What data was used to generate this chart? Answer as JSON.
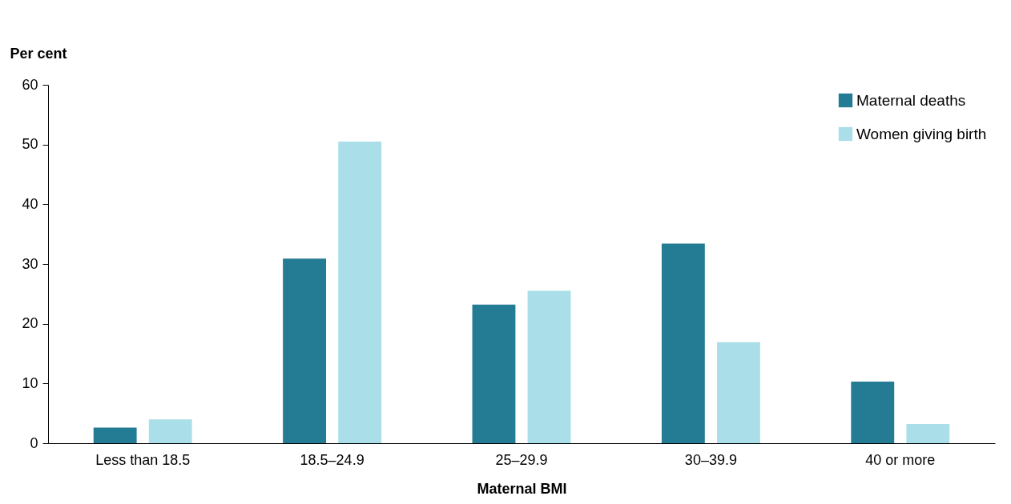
{
  "chart_data": {
    "type": "bar",
    "xlabel": "Maternal BMI",
    "ylabel": "Per cent",
    "categories": [
      "Less than 18.5",
      "18.5–24.9",
      "25–29.9",
      "30–39.9",
      "40 or more"
    ],
    "series": [
      {
        "name": "Maternal deaths",
        "color": "#237c93",
        "values": [
          2.6,
          30.9,
          23.2,
          33.4,
          10.3
        ]
      },
      {
        "name": "Women giving birth",
        "color": "#aadfe9",
        "values": [
          4.0,
          50.5,
          25.5,
          16.9,
          3.2
        ]
      }
    ],
    "ylim": [
      0,
      60
    ],
    "yticks": [
      0,
      10,
      20,
      30,
      40,
      50,
      60
    ],
    "grid": false,
    "legend": "top right"
  }
}
